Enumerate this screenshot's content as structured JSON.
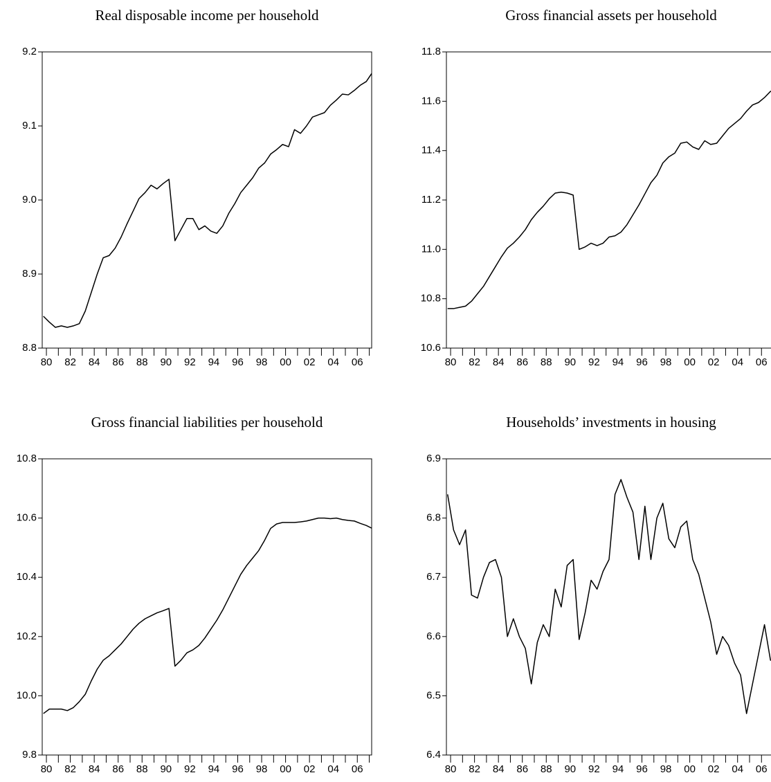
{
  "chart_data": [
    {
      "type": "line",
      "title": "Real disposable income per household",
      "x": [
        1979.75,
        1980.25,
        1980.75,
        1981.25,
        1981.75,
        1982.25,
        1982.75,
        1983.25,
        1983.75,
        1984.25,
        1984.75,
        1985.25,
        1985.75,
        1986.25,
        1986.75,
        1987.25,
        1987.75,
        1988.25,
        1988.75,
        1989.25,
        1989.75,
        1990.25,
        1990.75,
        1991.25,
        1991.75,
        1992.25,
        1992.75,
        1993.25,
        1993.75,
        1994.25,
        1994.75,
        1995.25,
        1995.75,
        1996.25,
        1996.75,
        1997.25,
        1997.75,
        1998.25,
        1998.75,
        1999.25,
        1999.75,
        2000.25,
        2000.75,
        2001.25,
        2001.75,
        2002.25,
        2002.75,
        2003.25,
        2003.75,
        2004.25,
        2004.75,
        2005.25,
        2005.75,
        2006.25,
        2006.75,
        2007.25
      ],
      "values": [
        8.843,
        8.835,
        8.828,
        8.83,
        8.828,
        8.83,
        8.833,
        8.85,
        8.875,
        8.9,
        8.922,
        8.925,
        8.935,
        8.95,
        8.968,
        8.985,
        9.002,
        9.01,
        9.02,
        9.015,
        9.022,
        9.028,
        8.945,
        8.96,
        8.975,
        8.975,
        8.96,
        8.965,
        8.958,
        8.955,
        8.965,
        8.982,
        8.995,
        9.01,
        9.02,
        9.03,
        9.043,
        9.05,
        9.062,
        9.068,
        9.075,
        9.072,
        9.095,
        9.09,
        9.1,
        9.112,
        9.115,
        9.118,
        9.128,
        9.135,
        9.143,
        9.142,
        9.148,
        9.155,
        9.16,
        9.172
      ],
      "color": "#000000",
      "xlim": [
        1979.65,
        2007.2
      ],
      "xticks": [
        {
          "value": 1980,
          "label": "80"
        },
        {
          "value": 1982,
          "label": "82"
        },
        {
          "value": 1984,
          "label": "84"
        },
        {
          "value": 1986,
          "label": "86"
        },
        {
          "value": 1988,
          "label": "88"
        },
        {
          "value": 1990,
          "label": "90"
        },
        {
          "value": 1992,
          "label": "92"
        },
        {
          "value": 1994,
          "label": "94"
        },
        {
          "value": 1996,
          "label": "96"
        },
        {
          "value": 1998,
          "label": "98"
        },
        {
          "value": 2000,
          "label": "00"
        },
        {
          "value": 2002,
          "label": "02"
        },
        {
          "value": 2004,
          "label": "04"
        },
        {
          "value": 2006,
          "label": "06"
        }
      ],
      "xminorticks": [
        1981,
        1983,
        1985,
        1987,
        1989,
        1991,
        1993,
        1995,
        1997,
        1999,
        2001,
        2003,
        2005,
        2007
      ],
      "ylim": [
        8.8,
        9.2
      ],
      "yticks": [
        8.8,
        8.9,
        {
          "value": 9,
          "label": "9.0"
        },
        9.1,
        9.2
      ]
    },
    {
      "type": "line",
      "title": "Gross financial assets per household",
      "x": [
        1979.75,
        1980.25,
        1980.75,
        1981.25,
        1981.75,
        1982.25,
        1982.75,
        1983.25,
        1983.75,
        1984.25,
        1984.75,
        1985.25,
        1985.75,
        1986.25,
        1986.75,
        1987.25,
        1987.75,
        1988.25,
        1988.75,
        1989.25,
        1989.75,
        1990.25,
        1990.75,
        1991.25,
        1991.75,
        1992.25,
        1992.75,
        1993.25,
        1993.75,
        1994.25,
        1994.75,
        1995.25,
        1995.75,
        1996.25,
        1996.75,
        1997.25,
        1997.75,
        1998.25,
        1998.75,
        1999.25,
        1999.75,
        2000.25,
        2000.75,
        2001.25,
        2001.75,
        2002.25,
        2002.75,
        2003.25,
        2003.75,
        2004.25,
        2004.75,
        2005.25,
        2005.75,
        2006.25,
        2006.75,
        2007.25
      ],
      "values": [
        10.76,
        10.76,
        10.765,
        10.77,
        10.79,
        10.82,
        10.85,
        10.89,
        10.93,
        10.97,
        11.005,
        11.025,
        11.05,
        11.08,
        11.12,
        11.15,
        11.175,
        11.205,
        11.228,
        11.232,
        11.228,
        11.22,
        11.0,
        11.01,
        11.025,
        11.015,
        11.025,
        11.05,
        11.055,
        11.07,
        11.1,
        11.14,
        11.18,
        11.225,
        11.27,
        11.3,
        11.35,
        11.375,
        11.39,
        11.43,
        11.435,
        11.415,
        11.405,
        11.44,
        11.425,
        11.43,
        11.46,
        11.49,
        11.51,
        11.53,
        11.56,
        11.585,
        11.595,
        11.615,
        11.64,
        11.65
      ],
      "color": "#000000",
      "xlim": [
        1979.65,
        2007.2
      ],
      "xticks": [
        {
          "value": 1980,
          "label": "80"
        },
        {
          "value": 1982,
          "label": "82"
        },
        {
          "value": 1984,
          "label": "84"
        },
        {
          "value": 1986,
          "label": "86"
        },
        {
          "value": 1988,
          "label": "88"
        },
        {
          "value": 1990,
          "label": "90"
        },
        {
          "value": 1992,
          "label": "92"
        },
        {
          "value": 1994,
          "label": "94"
        },
        {
          "value": 1996,
          "label": "96"
        },
        {
          "value": 1998,
          "label": "98"
        },
        {
          "value": 2000,
          "label": "00"
        },
        {
          "value": 2002,
          "label": "02"
        },
        {
          "value": 2004,
          "label": "04"
        },
        {
          "value": 2006,
          "label": "06"
        }
      ],
      "xminorticks": [
        1981,
        1983,
        1985,
        1987,
        1989,
        1991,
        1993,
        1995,
        1997,
        1999,
        2001,
        2003,
        2005,
        2007
      ],
      "ylim": [
        10.6,
        11.8
      ],
      "yticks": [
        10.6,
        10.8,
        {
          "value": 11,
          "label": "11.0"
        },
        11.2,
        11.4,
        11.6,
        11.8
      ]
    },
    {
      "type": "line",
      "title": "Gross financial liabilities per household",
      "x": [
        1979.75,
        1980.25,
        1980.75,
        1981.25,
        1981.75,
        1982.25,
        1982.75,
        1983.25,
        1983.75,
        1984.25,
        1984.75,
        1985.25,
        1985.75,
        1986.25,
        1986.75,
        1987.25,
        1987.75,
        1988.25,
        1988.75,
        1989.25,
        1989.75,
        1990.25,
        1990.75,
        1991.25,
        1991.75,
        1992.25,
        1992.75,
        1993.25,
        1993.75,
        1994.25,
        1994.75,
        1995.25,
        1995.75,
        1996.25,
        1996.75,
        1997.25,
        1997.75,
        1998.25,
        1998.75,
        1999.25,
        1999.75,
        2000.25,
        2000.75,
        2001.25,
        2001.75,
        2002.25,
        2002.75,
        2003.25,
        2003.75,
        2004.25,
        2004.75,
        2005.25,
        2005.75,
        2006.25,
        2006.75,
        2007.25
      ],
      "values": [
        9.94,
        9.955,
        9.955,
        9.955,
        9.95,
        9.96,
        9.98,
        10.005,
        10.05,
        10.09,
        10.12,
        10.135,
        10.155,
        10.175,
        10.2,
        10.225,
        10.245,
        10.26,
        10.27,
        10.28,
        10.287,
        10.295,
        10.1,
        10.12,
        10.145,
        10.155,
        10.17,
        10.195,
        10.225,
        10.255,
        10.29,
        10.33,
        10.37,
        10.41,
        10.44,
        10.465,
        10.49,
        10.525,
        10.565,
        10.58,
        10.585,
        10.585,
        10.585,
        10.587,
        10.59,
        10.595,
        10.6,
        10.6,
        10.598,
        10.6,
        10.595,
        10.592,
        10.59,
        10.582,
        10.575,
        10.565
      ],
      "color": "#000000",
      "xlim": [
        1979.65,
        2007.2
      ],
      "xticks": [
        {
          "value": 1980,
          "label": "80"
        },
        {
          "value": 1982,
          "label": "82"
        },
        {
          "value": 1984,
          "label": "84"
        },
        {
          "value": 1986,
          "label": "86"
        },
        {
          "value": 1988,
          "label": "88"
        },
        {
          "value": 1990,
          "label": "90"
        },
        {
          "value": 1992,
          "label": "92"
        },
        {
          "value": 1994,
          "label": "94"
        },
        {
          "value": 1996,
          "label": "96"
        },
        {
          "value": 1998,
          "label": "98"
        },
        {
          "value": 2000,
          "label": "00"
        },
        {
          "value": 2002,
          "label": "02"
        },
        {
          "value": 2004,
          "label": "04"
        },
        {
          "value": 2006,
          "label": "06"
        }
      ],
      "xminorticks": [
        1981,
        1983,
        1985,
        1987,
        1989,
        1991,
        1993,
        1995,
        1997,
        1999,
        2001,
        2003,
        2005,
        2007
      ],
      "ylim": [
        9.8,
        10.8
      ],
      "yticks": [
        9.8,
        {
          "value": 10,
          "label": "10.0"
        },
        10.2,
        10.4,
        10.6,
        10.8
      ]
    },
    {
      "type": "line",
      "title": "Households’ investments in housing",
      "x": [
        1979.75,
        1980.25,
        1980.75,
        1981.25,
        1981.75,
        1982.25,
        1982.75,
        1983.25,
        1983.75,
        1984.25,
        1984.75,
        1985.25,
        1985.75,
        1986.25,
        1986.75,
        1987.25,
        1987.75,
        1988.25,
        1988.75,
        1989.25,
        1989.75,
        1990.25,
        1990.75,
        1991.25,
        1991.75,
        1992.25,
        1992.75,
        1993.25,
        1993.75,
        1994.25,
        1994.75,
        1995.25,
        1995.75,
        1996.25,
        1996.75,
        1997.25,
        1997.75,
        1998.25,
        1998.75,
        1999.25,
        1999.75,
        2000.25,
        2000.75,
        2001.25,
        2001.75,
        2002.25,
        2002.75,
        2003.25,
        2003.75,
        2004.25,
        2004.75,
        2005.25,
        2005.75,
        2006.25,
        2006.75,
        2007.25
      ],
      "values": [
        6.84,
        6.78,
        6.755,
        6.78,
        6.67,
        6.665,
        6.7,
        6.725,
        6.73,
        6.7,
        6.6,
        6.63,
        6.6,
        6.58,
        6.52,
        6.59,
        6.62,
        6.6,
        6.68,
        6.65,
        6.72,
        6.73,
        6.595,
        6.64,
        6.695,
        6.68,
        6.71,
        6.73,
        6.84,
        6.865,
        6.835,
        6.81,
        6.73,
        6.82,
        6.73,
        6.8,
        6.825,
        6.765,
        6.75,
        6.785,
        6.795,
        6.73,
        6.705,
        6.665,
        6.625,
        6.57,
        6.6,
        6.585,
        6.555,
        6.535,
        6.47,
        6.52,
        6.57,
        6.62,
        6.56,
        6.56
      ],
      "color": "#000000",
      "xlim": [
        1979.65,
        2007.2
      ],
      "xticks": [
        {
          "value": 1980,
          "label": "80"
        },
        {
          "value": 1982,
          "label": "82"
        },
        {
          "value": 1984,
          "label": "84"
        },
        {
          "value": 1986,
          "label": "86"
        },
        {
          "value": 1988,
          "label": "88"
        },
        {
          "value": 1990,
          "label": "90"
        },
        {
          "value": 1992,
          "label": "92"
        },
        {
          "value": 1994,
          "label": "94"
        },
        {
          "value": 1996,
          "label": "96"
        },
        {
          "value": 1998,
          "label": "98"
        },
        {
          "value": 2000,
          "label": "00"
        },
        {
          "value": 2002,
          "label": "02"
        },
        {
          "value": 2004,
          "label": "04"
        },
        {
          "value": 2006,
          "label": "06"
        }
      ],
      "xminorticks": [
        1981,
        1983,
        1985,
        1987,
        1989,
        1991,
        1993,
        1995,
        1997,
        1999,
        2001,
        2003,
        2005,
        2007
      ],
      "ylim": [
        6.4,
        6.9
      ],
      "yticks": [
        6.4,
        6.5,
        6.6,
        6.7,
        6.8,
        6.9
      ]
    }
  ]
}
